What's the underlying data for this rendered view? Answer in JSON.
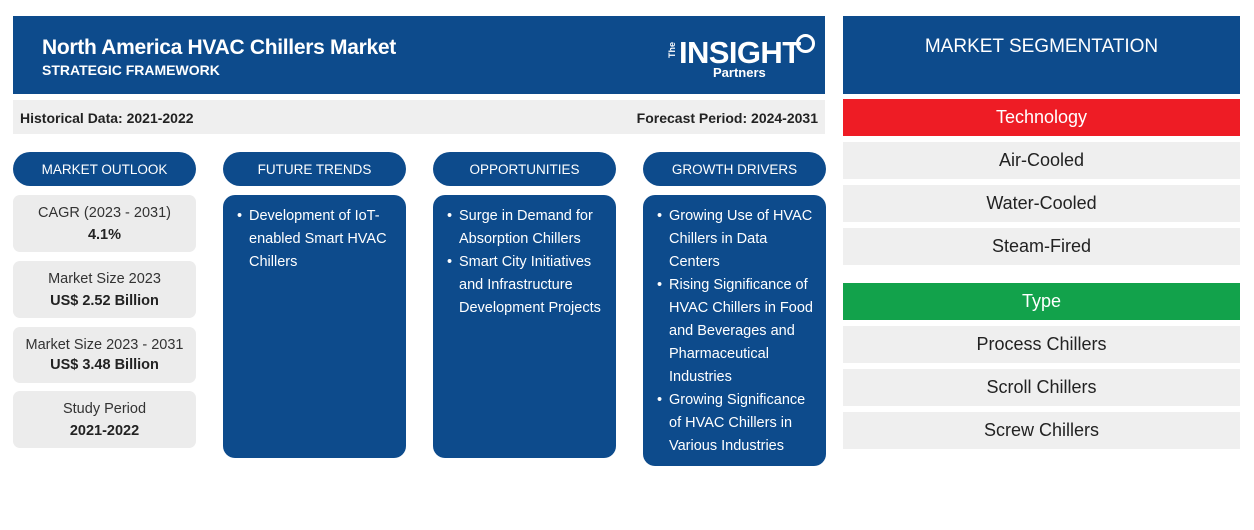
{
  "header": {
    "title": "North America HVAC Chillers Market",
    "subtitle": "STRATEGIC FRAMEWORK",
    "logo": {
      "the": "The",
      "insight": "INSIGHT",
      "partners": "Partners"
    }
  },
  "periods": {
    "historical": "Historical Data: 2021-2022",
    "forecast": "Forecast Period: 2024-2031"
  },
  "columns": [
    {
      "heading": "MARKET OUTLOOK"
    },
    {
      "heading": "FUTURE TRENDS",
      "items": [
        "Development of IoT-enabled Smart HVAC Chillers"
      ]
    },
    {
      "heading": "OPPORTUNITIES",
      "items": [
        "Surge in Demand for Absorption Chillers",
        "Smart City Initiatives and Infrastructure Development Projects"
      ]
    },
    {
      "heading": "GROWTH DRIVERS",
      "items": [
        "Growing Use of HVAC Chillers in Data Centers",
        "Rising Significance of HVAC Chillers in Food and Beverages and Pharmaceutical Industries",
        "Growing Significance of HVAC Chillers in Various Industries"
      ]
    }
  ],
  "outlook": [
    {
      "label": "CAGR (2023 - 2031)",
      "value": "4.1%"
    },
    {
      "label": "Market Size 2023",
      "value": "US$ 2.52 Billion"
    },
    {
      "label": "Market Size 2023 - 2031",
      "value": "US$ 3.48 Billion"
    },
    {
      "label": "Study Period",
      "value": "2021-2022"
    }
  ],
  "segmentation": {
    "title": "MARKET SEGMENTATION",
    "technology": {
      "label": "Technology",
      "color": "#ee1c25",
      "items": [
        "Air-Cooled",
        "Water-Cooled",
        "Steam-Fired"
      ]
    },
    "type": {
      "label": "Type",
      "color": "#12a24b",
      "items": [
        "Process Chillers",
        "Scroll Chillers",
        "Screw Chillers"
      ]
    }
  },
  "colors": {
    "primary": "#0d4b8c",
    "panel": "#efefef"
  }
}
